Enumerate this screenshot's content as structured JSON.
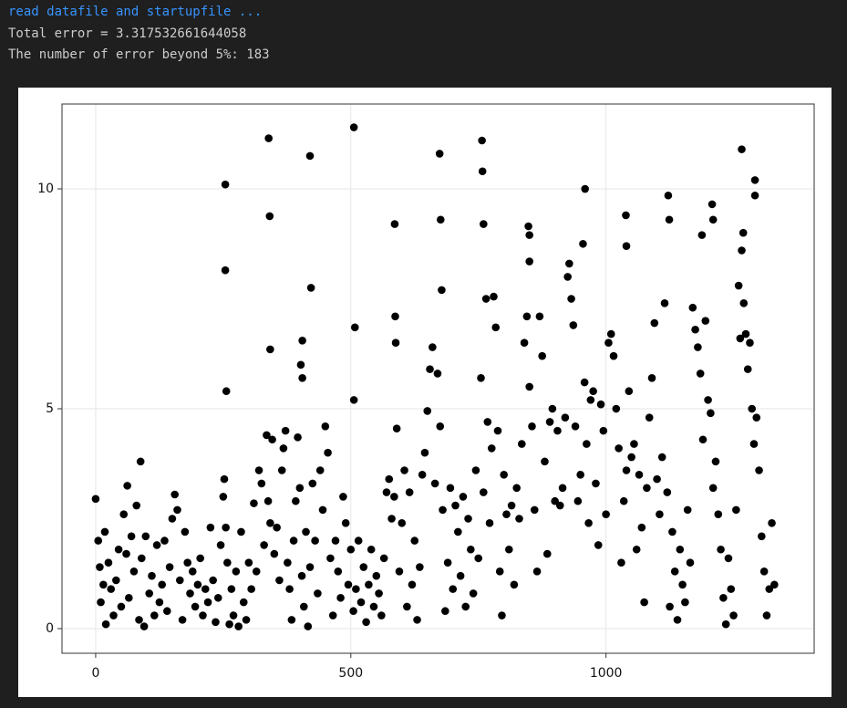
{
  "output": {
    "lines": [
      "read datafile and startupfile ...",
      "Total error = 3.317532661644058",
      "The number of error beyond 5%: 183"
    ]
  },
  "chart_data": {
    "type": "scatter",
    "color": "#000000",
    "grid": true,
    "xlim": [
      -66,
      1408
    ],
    "ylim": [
      -0.56,
      11.93
    ],
    "xticks": [
      0,
      500,
      1000
    ],
    "yticks": [
      0,
      5,
      10
    ],
    "x": [
      254,
      254,
      256,
      339,
      341,
      342,
      420,
      422,
      405,
      402,
      405,
      506,
      508,
      506,
      586,
      587,
      588,
      674,
      676,
      678,
      757,
      758,
      760,
      959,
      1039,
      1040,
      1122,
      1124,
      1188,
      1208,
      1210,
      1266,
      1292,
      1292,
      1269,
      848,
      850,
      850,
      0,
      5,
      8,
      10,
      15,
      18,
      20,
      25,
      30,
      35,
      40,
      45,
      50,
      55,
      60,
      62,
      65,
      70,
      75,
      80,
      85,
      88,
      90,
      95,
      98,
      105,
      110,
      115,
      120,
      125,
      130,
      135,
      140,
      145,
      150,
      155,
      160,
      165,
      170,
      175,
      180,
      185,
      190,
      195,
      200,
      205,
      210,
      215,
      220,
      225,
      230,
      235,
      240,
      245,
      250,
      252,
      255,
      258,
      262,
      266,
      270,
      275,
      280,
      285,
      290,
      295,
      300,
      305,
      310,
      315,
      320,
      325,
      330,
      335,
      338,
      342,
      346,
      350,
      355,
      360,
      365,
      368,
      372,
      376,
      380,
      384,
      388,
      392,
      396,
      400,
      404,
      408,
      412,
      416,
      420,
      425,
      430,
      435,
      440,
      445,
      450,
      455,
      460,
      465,
      470,
      475,
      480,
      485,
      490,
      495,
      500,
      505,
      510,
      515,
      520,
      525,
      530,
      535,
      540,
      545,
      550,
      555,
      560,
      565,
      570,
      575,
      580,
      585,
      590,
      595,
      600,
      605,
      610,
      615,
      620,
      625,
      630,
      635,
      640,
      645,
      650,
      655,
      660,
      665,
      670,
      675,
      680,
      685,
      690,
      695,
      700,
      705,
      710,
      715,
      720,
      725,
      730,
      735,
      740,
      745,
      750,
      755,
      760,
      765,
      768,
      772,
      776,
      780,
      784,
      788,
      792,
      796,
      800,
      805,
      810,
      815,
      820,
      825,
      830,
      835,
      840,
      845,
      850,
      855,
      860,
      865,
      870,
      875,
      880,
      885,
      890,
      895,
      900,
      905,
      910,
      915,
      920,
      925,
      928,
      932,
      936,
      940,
      945,
      950,
      955,
      958,
      962,
      966,
      970,
      975,
      980,
      985,
      990,
      995,
      1000,
      1005,
      1010,
      1015,
      1020,
      1025,
      1030,
      1035,
      1040,
      1045,
      1050,
      1055,
      1060,
      1065,
      1070,
      1075,
      1080,
      1085,
      1090,
      1095,
      1100,
      1105,
      1110,
      1115,
      1120,
      1125,
      1130,
      1135,
      1140,
      1145,
      1150,
      1155,
      1160,
      1165,
      1170,
      1175,
      1180,
      1185,
      1190,
      1195,
      1200,
      1205,
      1210,
      1215,
      1220,
      1225,
      1230,
      1235,
      1240,
      1245,
      1250,
      1255,
      1260,
      1263,
      1266,
      1270,
      1274,
      1278,
      1282,
      1286,
      1290,
      1295,
      1300,
      1305,
      1310,
      1315,
      1320,
      1325,
      1330
    ],
    "values": [
      10.1,
      8.15,
      5.4,
      11.15,
      9.38,
      6.35,
      10.75,
      7.75,
      6.55,
      6.0,
      5.7,
      11.4,
      6.85,
      5.2,
      9.2,
      7.1,
      6.5,
      10.8,
      9.3,
      7.7,
      11.1,
      10.4,
      9.2,
      10.0,
      9.4,
      8.7,
      9.85,
      9.3,
      8.95,
      9.65,
      9.3,
      10.9,
      10.2,
      9.85,
      9.0,
      9.15,
      8.95,
      8.35,
      2.95,
      2.0,
      1.4,
      0.6,
      1.0,
      2.2,
      0.1,
      1.5,
      0.9,
      0.3,
      1.1,
      1.8,
      0.5,
      2.6,
      1.7,
      3.25,
      0.7,
      2.1,
      1.3,
      2.8,
      0.2,
      3.8,
      1.6,
      0.05,
      2.1,
      0.8,
      1.2,
      0.3,
      1.9,
      0.6,
      1.0,
      2.0,
      0.4,
      1.4,
      2.5,
      3.05,
      2.7,
      1.1,
      0.2,
      2.2,
      1.5,
      0.8,
      1.3,
      0.5,
      1.0,
      1.6,
      0.3,
      0.9,
      0.6,
      2.3,
      1.1,
      0.15,
      0.7,
      1.9,
      3.0,
      3.4,
      2.3,
      1.5,
      0.1,
      0.9,
      0.3,
      1.3,
      0.05,
      2.2,
      0.6,
      0.2,
      1.5,
      0.9,
      2.85,
      1.3,
      3.6,
      3.3,
      1.9,
      4.4,
      2.9,
      2.4,
      4.3,
      1.7,
      2.3,
      1.1,
      3.6,
      4.1,
      4.5,
      1.5,
      0.9,
      0.2,
      2.0,
      2.9,
      4.35,
      3.2,
      1.2,
      0.5,
      2.2,
      0.05,
      1.4,
      3.3,
      2.0,
      0.8,
      3.6,
      2.7,
      4.6,
      4.0,
      1.6,
      0.3,
      2.0,
      1.3,
      0.7,
      3.0,
      2.4,
      1.0,
      1.8,
      0.4,
      0.9,
      2.0,
      0.6,
      1.4,
      0.15,
      1.0,
      1.8,
      0.5,
      1.2,
      0.8,
      0.3,
      1.6,
      3.1,
      3.4,
      2.5,
      3.0,
      4.55,
      1.3,
      2.4,
      3.6,
      0.5,
      3.1,
      1.0,
      2.0,
      0.2,
      1.4,
      3.5,
      4.0,
      4.95,
      5.9,
      6.4,
      3.3,
      5.8,
      4.6,
      2.7,
      0.4,
      1.5,
      3.2,
      0.9,
      2.8,
      2.2,
      1.2,
      3.0,
      0.5,
      2.5,
      1.8,
      0.8,
      3.6,
      1.6,
      5.7,
      3.1,
      7.5,
      4.7,
      2.4,
      4.1,
      7.55,
      6.85,
      4.5,
      1.3,
      0.3,
      3.5,
      2.6,
      1.8,
      2.8,
      1.0,
      3.2,
      2.5,
      4.2,
      6.5,
      7.1,
      5.5,
      4.6,
      2.7,
      1.3,
      7.1,
      6.2,
      3.8,
      1.7,
      4.7,
      5.0,
      2.9,
      4.5,
      2.8,
      3.2,
      4.8,
      8.0,
      8.3,
      7.5,
      6.9,
      4.6,
      2.9,
      3.5,
      8.75,
      5.6,
      4.2,
      2.4,
      5.2,
      5.4,
      3.3,
      1.9,
      5.1,
      4.5,
      2.6,
      6.5,
      6.7,
      6.2,
      5.0,
      4.1,
      1.5,
      2.9,
      3.6,
      5.4,
      3.9,
      4.2,
      1.8,
      3.5,
      2.3,
      0.6,
      3.2,
      4.8,
      5.7,
      6.95,
      3.4,
      2.6,
      3.9,
      7.4,
      3.1,
      0.5,
      2.2,
      1.3,
      0.2,
      1.8,
      1.0,
      0.6,
      2.7,
      1.5,
      7.3,
      6.8,
      6.4,
      5.8,
      4.3,
      7.0,
      5.2,
      4.9,
      3.2,
      3.8,
      2.6,
      1.8,
      0.7,
      0.1,
      1.6,
      0.9,
      0.3,
      2.7,
      7.8,
      6.6,
      8.6,
      7.4,
      6.7,
      5.9,
      6.5,
      5.0,
      4.2,
      4.8,
      3.6,
      2.1,
      1.3,
      0.3,
      0.9,
      2.4,
      1.0
    ]
  }
}
